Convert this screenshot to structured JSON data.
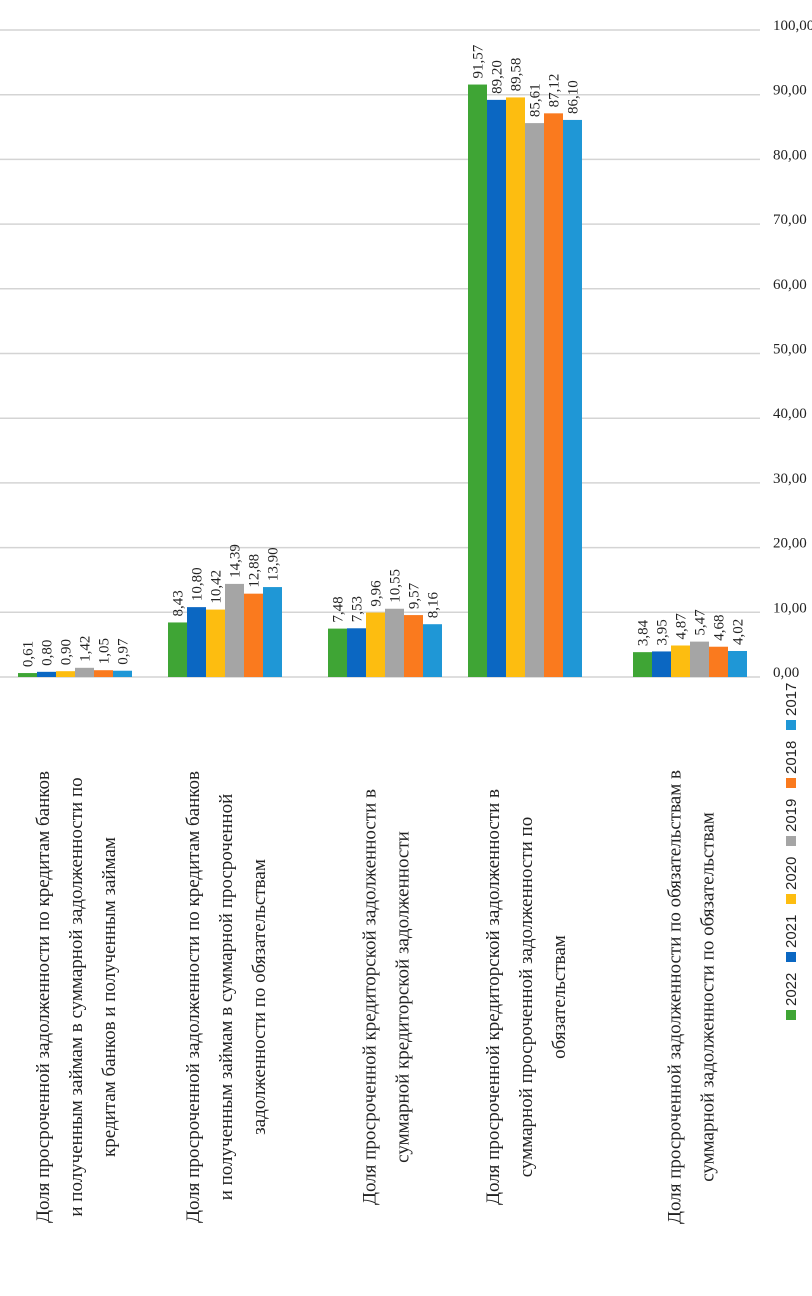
{
  "chart_data": {
    "type": "bar",
    "orientation": "vertical-bars, image rotated 90deg counter-clockwise",
    "title": "",
    "xlabel": "",
    "ylabel": "",
    "ylim": [
      0,
      100
    ],
    "yticks": [
      "0,00",
      "10,00",
      "20,00",
      "30,00",
      "40,00",
      "50,00",
      "60,00",
      "70,00",
      "80,00",
      "90,00",
      "100,00"
    ],
    "grid": true,
    "legend_position": "bottom",
    "categories": [
      [
        "Доля просроченной задолженности по кредитам банков",
        "и полученным займам в суммарной задолженности по",
        "кредитам банков и полученным займам"
      ],
      [
        "Доля просроченной задолженности по кредитам банков",
        "и полученным займам в суммарной просроченной",
        "задолженности по обязательствам"
      ],
      [
        "Доля просроченной кредиторской задолженности в",
        "суммарной кредиторской задолженности"
      ],
      [
        "Доля просроченной кредиторской задолженности в",
        "суммарной просроченной задолженности по",
        "обязательствам"
      ],
      [
        "Доля просроченной задолженности по обязательствам в",
        "суммарной задолженности по обязательствам"
      ]
    ],
    "series": [
      {
        "name": "2022",
        "color": "#3fa535",
        "values": [
          0.61,
          8.43,
          7.48,
          91.57,
          3.84
        ],
        "labels": [
          "0,61",
          "8,43",
          "7,48",
          "91,57",
          "3,84"
        ]
      },
      {
        "name": "2021",
        "color": "#0b67c2",
        "values": [
          0.8,
          10.8,
          7.53,
          89.2,
          3.95
        ],
        "labels": [
          "0,80",
          "10,80",
          "7,53",
          "89,20",
          "3,95"
        ]
      },
      {
        "name": "2020",
        "color": "#fdbd10",
        "values": [
          0.9,
          10.42,
          9.96,
          89.58,
          4.87
        ],
        "labels": [
          "0,90",
          "10,42",
          "9,96",
          "89,58",
          "4,87"
        ]
      },
      {
        "name": "2019",
        "color": "#a5a5a5",
        "values": [
          1.42,
          14.39,
          10.55,
          85.61,
          5.47
        ],
        "labels": [
          "1,42",
          "14,39",
          "10,55",
          "85,61",
          "5,47"
        ]
      },
      {
        "name": "2018",
        "color": "#fa7a1e",
        "values": [
          1.05,
          12.88,
          9.57,
          87.12,
          4.68
        ],
        "labels": [
          "1,05",
          "12,88",
          "9,57",
          "87,12",
          "4,68"
        ]
      },
      {
        "name": "2017",
        "color": "#1f97d6",
        "values": [
          0.97,
          13.9,
          8.16,
          86.1,
          4.02
        ],
        "labels": [
          "0,97",
          "13,90",
          "8,16",
          "86,10",
          "4,02"
        ]
      }
    ]
  }
}
